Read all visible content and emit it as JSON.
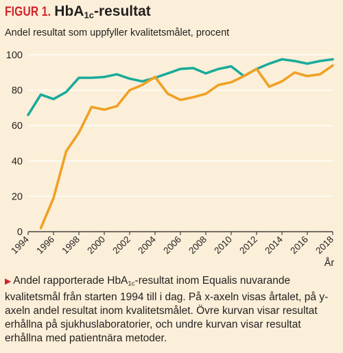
{
  "header": {
    "fig_label": "FIGUR 1.",
    "title_pre": "HbA",
    "title_sub": "1c",
    "title_post": "-resultat"
  },
  "chart_data": {
    "type": "line",
    "title": "HbA1c-resultat",
    "subtitle": "Andel resultat som uppfyller kvalitetsmålet, procent",
    "xlabel": "År",
    "ylabel": "",
    "xlim": [
      1994,
      2018
    ],
    "ylim": [
      0,
      100
    ],
    "x_ticks": [
      1994,
      1996,
      1998,
      2000,
      2002,
      2004,
      2006,
      2008,
      2010,
      2012,
      2014,
      2016,
      2018
    ],
    "y_ticks": [
      0,
      20,
      40,
      60,
      80,
      100
    ],
    "grid": true,
    "legend": "none",
    "series": [
      {
        "color": "#1aab9b",
        "x": [
          1994,
          1995,
          1996,
          1997,
          1998,
          1999,
          2000,
          2001,
          2002,
          2003,
          2004,
          2005,
          2006,
          2007,
          2008,
          2009,
          2010,
          2011,
          2012,
          2013,
          2014,
          2015,
          2016,
          2017,
          2018
        ],
        "values": [
          66,
          77.5,
          75,
          79,
          87,
          87,
          87.5,
          89,
          86.5,
          85,
          87,
          89.5,
          92,
          92.5,
          89.5,
          92,
          93.5,
          88,
          92,
          95,
          97.5,
          96.5,
          95,
          96.5,
          97.5
        ]
      },
      {
        "color": "#f0a024",
        "x": [
          1995,
          1996,
          1997,
          1998,
          1999,
          2000,
          2001,
          2002,
          2003,
          2004,
          2005,
          2006,
          2007,
          2008,
          2009,
          2010,
          2011,
          2012,
          2013,
          2014,
          2015,
          2016,
          2017,
          2018
        ],
        "values": [
          2,
          19,
          45.5,
          56,
          70.5,
          69,
          71,
          80,
          83,
          87.5,
          78,
          74.5,
          76,
          78,
          83,
          84.5,
          88,
          92,
          82,
          85,
          90,
          88,
          89,
          94
        ]
      }
    ]
  },
  "caption": {
    "marker": "▶",
    "text_pre": "Andel rapporterade HbA",
    "text_sub": "1c",
    "text_post": "-resultat inom Equalis nuvarande kvalitetsmål från starten 1994 till i dag. På x-axeln visas årtalet, på y-axeln andel resultat inom kvalitetsmålet. Övre kurvan visar resultat erhållna på sjukhuslaboratorier, och undre kurvan visar resultat erhållna med patientnära metoder."
  }
}
